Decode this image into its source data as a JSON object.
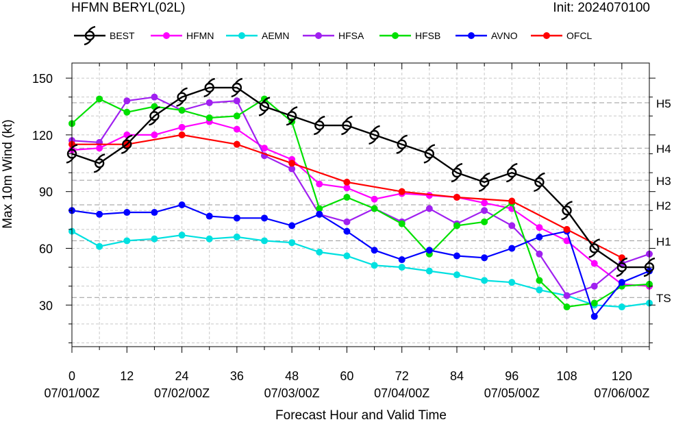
{
  "header": {
    "title": "HFMN BERYL(02L)",
    "init": "Init: 2024070100"
  },
  "chart_data": {
    "type": "line",
    "xlabel": "Forecast Hour and Valid Time",
    "ylabel": "Max 10m Wind (kt)",
    "xlim": [
      0,
      126
    ],
    "ylim": [
      8,
      158
    ],
    "grid": true,
    "legend_position": "top",
    "x_ticks": [
      0,
      12,
      24,
      36,
      48,
      60,
      72,
      84,
      96,
      108,
      120
    ],
    "y_ticks": [
      30,
      60,
      90,
      120,
      150
    ],
    "date_ticks": [
      {
        "x": 0,
        "label": "07/01/00Z"
      },
      {
        "x": 24,
        "label": "07/02/00Z"
      },
      {
        "x": 48,
        "label": "07/03/00Z"
      },
      {
        "x": 72,
        "label": "07/04/00Z"
      },
      {
        "x": 96,
        "label": "07/05/00Z"
      },
      {
        "x": 120,
        "label": "07/06/00Z"
      }
    ],
    "thresholds": [
      {
        "label": "TS",
        "value": 34
      },
      {
        "label": "H1",
        "value": 64
      },
      {
        "label": "H2",
        "value": 83
      },
      {
        "label": "H3",
        "value": 96
      },
      {
        "label": "H4",
        "value": 113
      },
      {
        "label": "H5",
        "value": 137
      }
    ],
    "series": [
      {
        "name": "BEST",
        "color": "#000000",
        "marker": "hurricane-symbol",
        "x": [
          0,
          6,
          12,
          18,
          24,
          30,
          36,
          42,
          48,
          54,
          60,
          66,
          72,
          78,
          84,
          90,
          96,
          102,
          108,
          114,
          120,
          126
        ],
        "y": [
          110,
          105,
          115,
          130,
          140,
          145,
          145,
          135,
          130,
          125,
          125,
          120,
          115,
          110,
          100,
          95,
          100,
          95,
          80,
          60,
          50,
          50
        ]
      },
      {
        "name": "HFMN",
        "color": "#ff00ff",
        "marker": "dot",
        "x": [
          0,
          6,
          12,
          18,
          24,
          30,
          36,
          42,
          48,
          54,
          60,
          66,
          72,
          78,
          84,
          90,
          96,
          102,
          108,
          114,
          120,
          126
        ],
        "y": [
          112,
          113,
          120,
          120,
          124,
          127,
          123,
          113,
          107,
          94,
          92,
          86,
          89,
          88,
          87,
          84,
          81,
          71,
          64,
          52,
          41,
          40
        ]
      },
      {
        "name": "AEMN",
        "color": "#00e0e0",
        "marker": "dot",
        "x": [
          0,
          6,
          12,
          18,
          24,
          30,
          36,
          42,
          48,
          54,
          60,
          66,
          72,
          78,
          84,
          90,
          96,
          102,
          108,
          114,
          120,
          126
        ],
        "y": [
          69,
          61,
          64,
          65,
          67,
          65,
          66,
          64,
          63,
          58,
          56,
          51,
          50,
          48,
          46,
          43,
          42,
          38,
          35,
          30,
          29,
          31
        ]
      },
      {
        "name": "HFSA",
        "color": "#a020f0",
        "marker": "dot",
        "x": [
          0,
          6,
          12,
          18,
          24,
          30,
          36,
          42,
          48,
          54,
          60,
          66,
          72,
          78,
          84,
          90,
          96,
          102,
          108,
          114,
          120,
          126
        ],
        "y": [
          117,
          116,
          138,
          140,
          133,
          137,
          138,
          109,
          102,
          78,
          74,
          81,
          74,
          81,
          73,
          80,
          72,
          57,
          35,
          40,
          52,
          57
        ]
      },
      {
        "name": "HFSB",
        "color": "#00e000",
        "marker": "dot",
        "x": [
          0,
          6,
          12,
          18,
          24,
          30,
          36,
          42,
          48,
          54,
          60,
          66,
          72,
          78,
          84,
          90,
          96,
          102,
          108,
          114,
          120,
          126
        ],
        "y": [
          126,
          139,
          132,
          135,
          133,
          129,
          130,
          139,
          127,
          81,
          87,
          81,
          73,
          57,
          72,
          74,
          84,
          43,
          29,
          31,
          40,
          41
        ]
      },
      {
        "name": "AVNO",
        "color": "#0000ff",
        "marker": "dot",
        "x": [
          0,
          6,
          12,
          18,
          24,
          30,
          36,
          42,
          48,
          54,
          60,
          66,
          72,
          78,
          84,
          90,
          96,
          102,
          108,
          114,
          120,
          126
        ],
        "y": [
          80,
          78,
          79,
          79,
          83,
          77,
          76,
          76,
          72,
          78,
          69,
          59,
          54,
          59,
          56,
          55,
          60,
          66,
          69,
          24,
          42,
          48
        ]
      },
      {
        "name": "OFCL",
        "color": "#ff0000",
        "marker": "dot",
        "x": [
          0,
          12,
          24,
          36,
          48,
          60,
          72,
          84,
          96,
          108,
          120
        ],
        "y": [
          115,
          115,
          120,
          115,
          105,
          95,
          90,
          87,
          85,
          70,
          55
        ]
      }
    ]
  }
}
